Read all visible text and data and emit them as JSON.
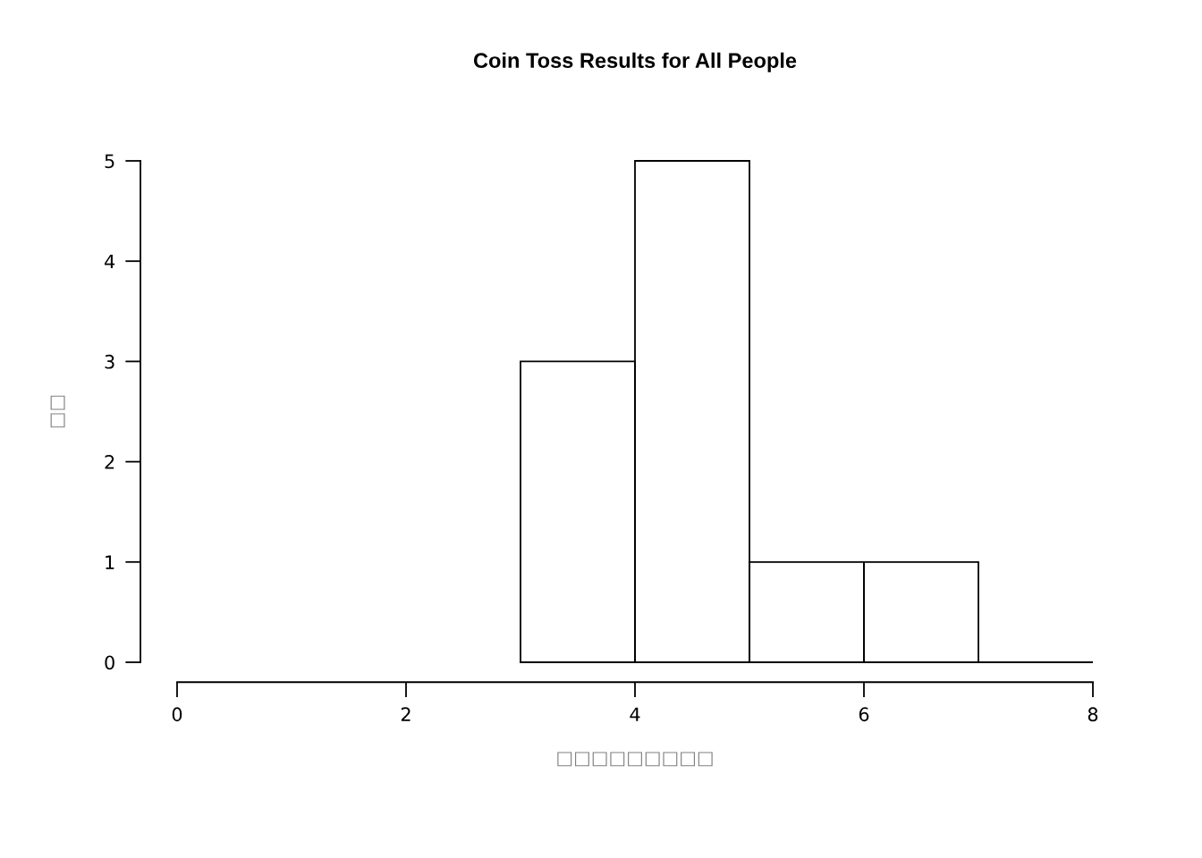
{
  "chart_data": {
    "type": "histogram",
    "title": "Coin Toss Results for All People",
    "xlabel": "□□□□□□□□□",
    "ylabel": "□□",
    "bins": [
      3,
      4,
      5,
      6,
      7,
      8
    ],
    "values": [
      3,
      5,
      1,
      1,
      0
    ],
    "xlim": [
      0,
      8
    ],
    "xticks": [
      0,
      2,
      4,
      6,
      8
    ],
    "ylim": [
      0,
      5
    ],
    "yticks": [
      0,
      1,
      2,
      3,
      4,
      5
    ],
    "grid": false,
    "legend": false
  }
}
